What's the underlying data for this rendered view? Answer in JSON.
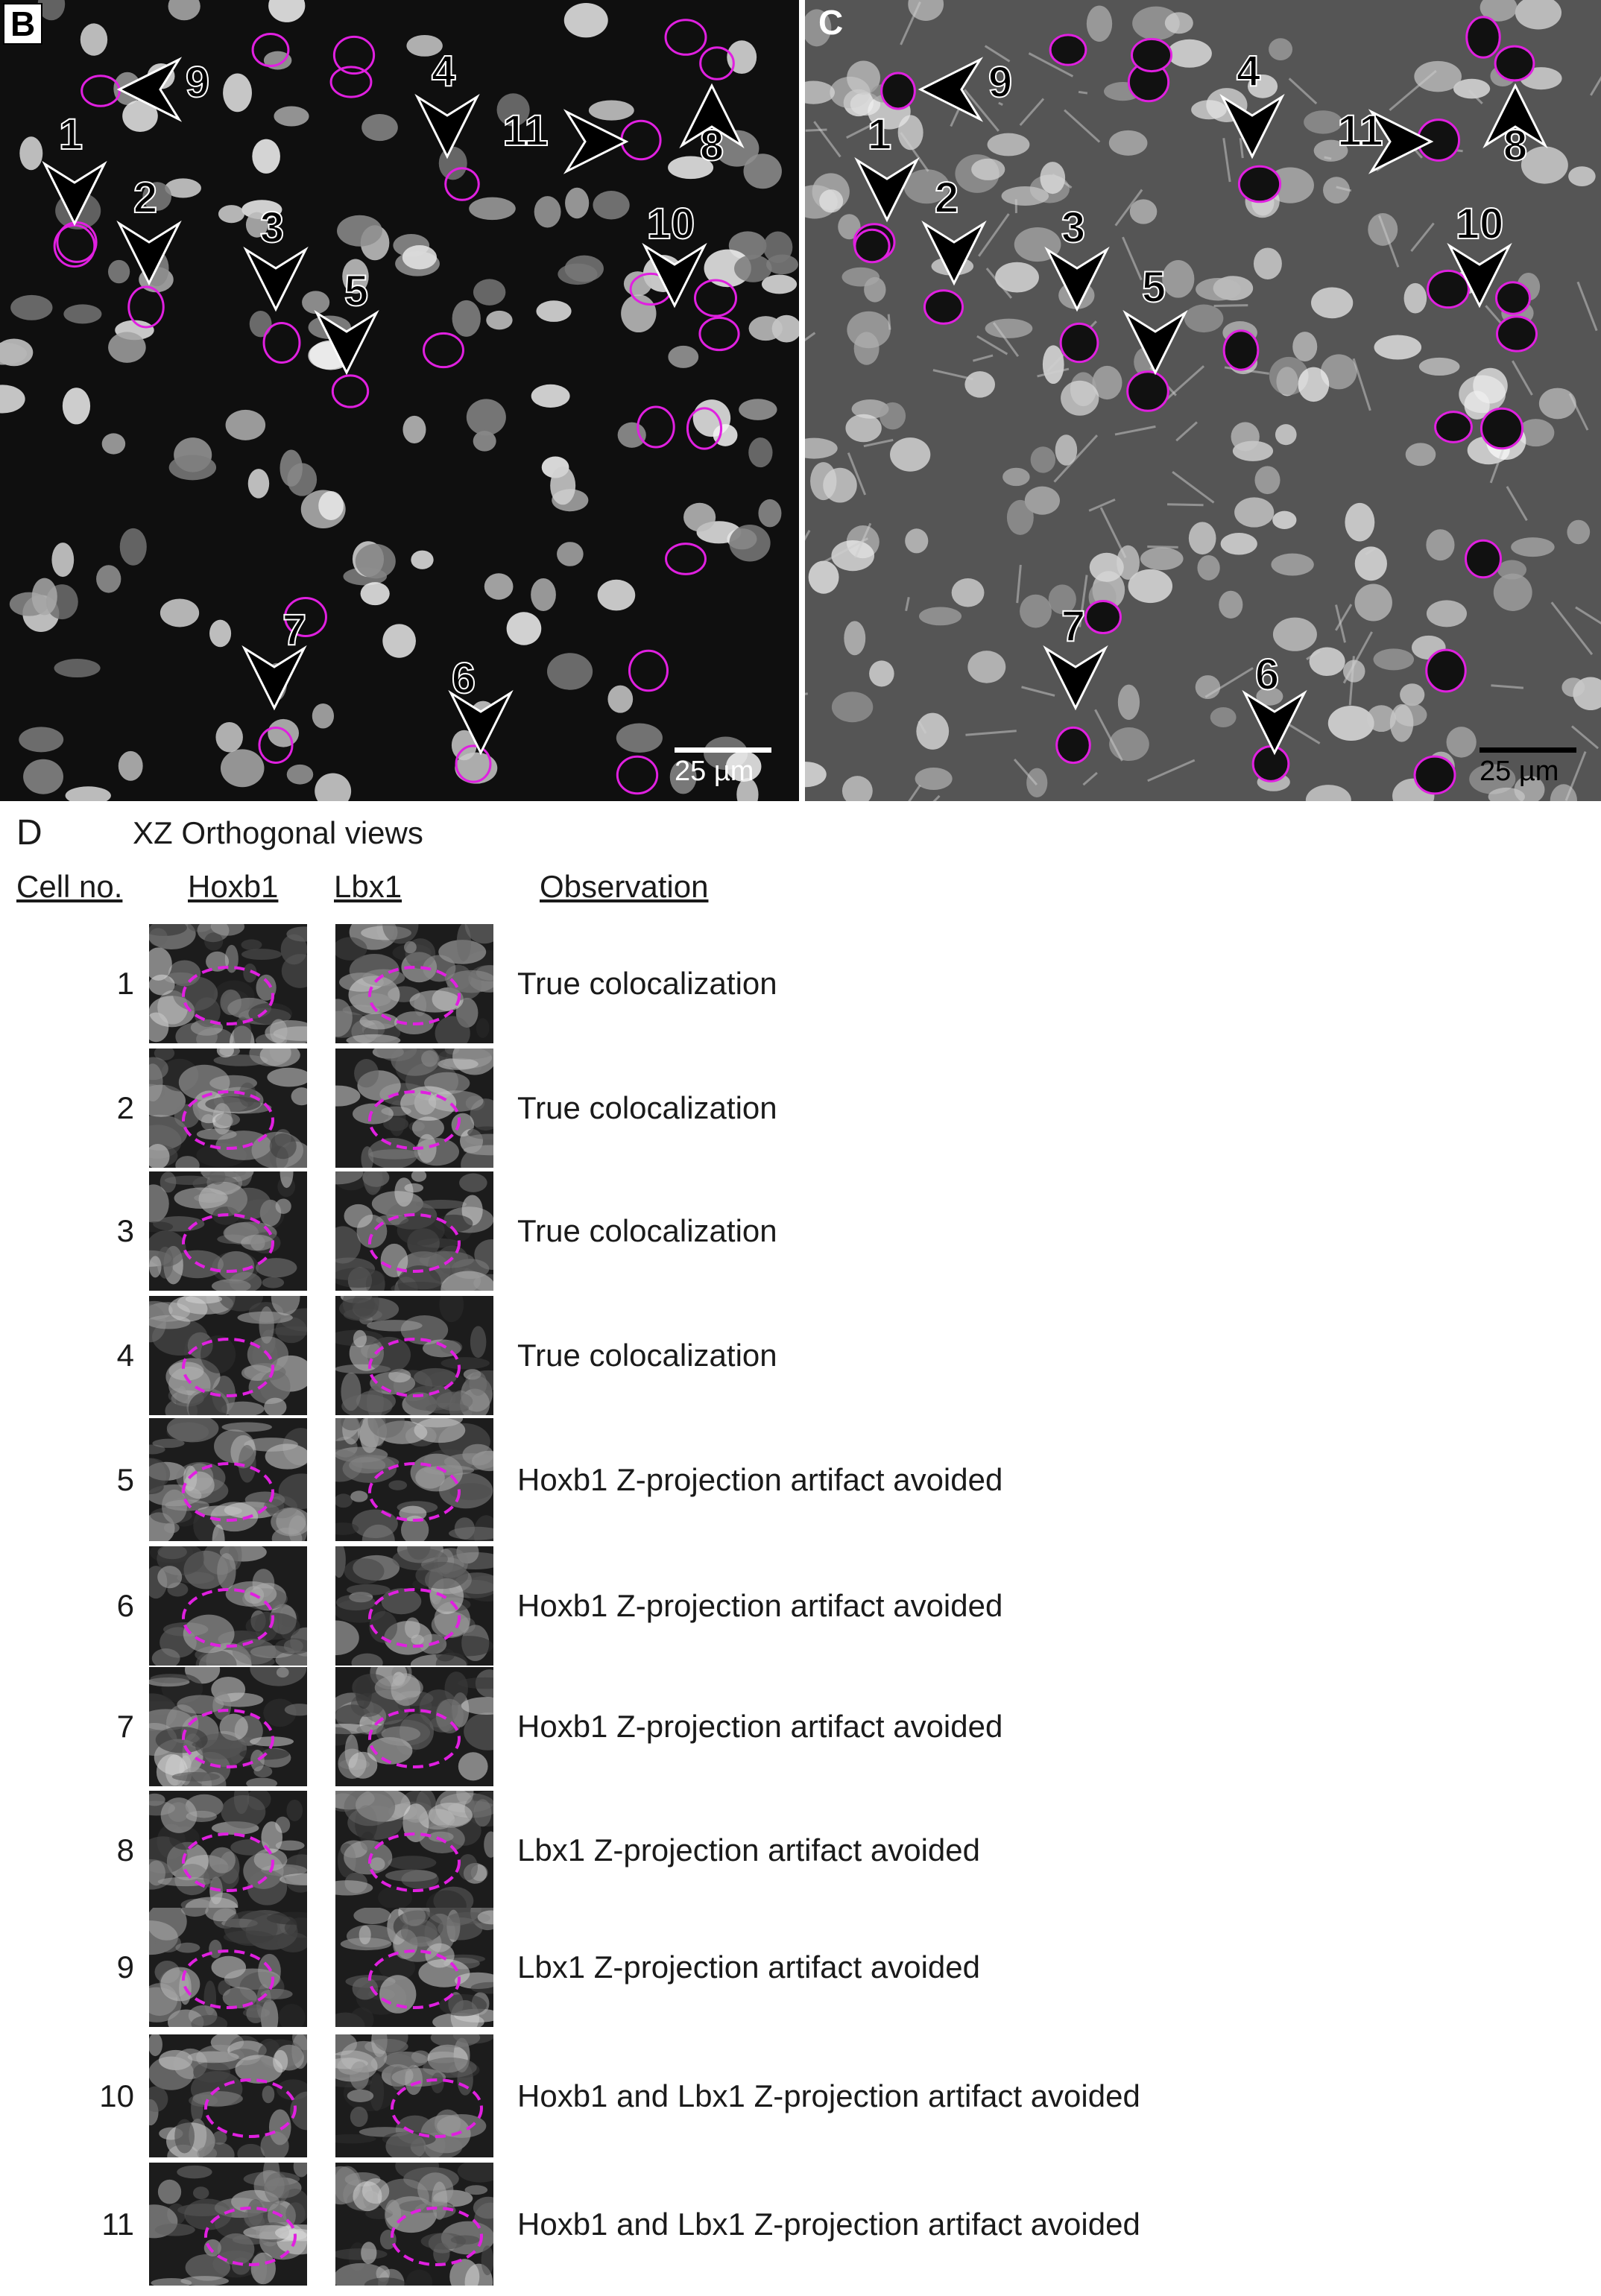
{
  "panel_b": {
    "label": "B",
    "scale_bar": "25 µm",
    "arrow_labels": [
      "1",
      "2",
      "3",
      "4",
      "5",
      "6",
      "7",
      "8",
      "9",
      "10",
      "11"
    ]
  },
  "panel_c": {
    "label": "C",
    "scale_bar": "25 µm",
    "arrow_labels": [
      "1",
      "2",
      "3",
      "4",
      "5",
      "6",
      "7",
      "8",
      "9",
      "10",
      "11"
    ]
  },
  "panel_d": {
    "label": "D",
    "title": "XZ Orthogonal views",
    "headers": {
      "cell": "Cell no.",
      "hoxb1": "Hoxb1",
      "lbx1": "Lbx1",
      "observation": "Observation"
    },
    "rows": [
      {
        "cell": "1",
        "observation": "True colocalization"
      },
      {
        "cell": "2",
        "observation": "True colocalization"
      },
      {
        "cell": "3",
        "observation": "True colocalization"
      },
      {
        "cell": "4",
        "observation": "True colocalization"
      },
      {
        "cell": "5",
        "observation": "Hoxb1 Z-projection artifact avoided"
      },
      {
        "cell": "6",
        "observation": "Hoxb1 Z-projection artifact avoided"
      },
      {
        "cell": "7",
        "observation": "Hoxb1 Z-projection artifact avoided"
      },
      {
        "cell": "8",
        "observation": "Lbx1 Z-projection artifact avoided"
      },
      {
        "cell": "9",
        "observation": "Lbx1 Z-projection artifact avoided"
      },
      {
        "cell": "10",
        "observation": "Hoxb1 and Lbx1 Z-projection artifact avoided"
      },
      {
        "cell": "11",
        "observation": "Hoxb1 and Lbx1 Z-projection artifact avoided"
      }
    ]
  },
  "colors": {
    "outline": "#e020e0",
    "arrow": "#000000",
    "background": "#ffffff"
  }
}
